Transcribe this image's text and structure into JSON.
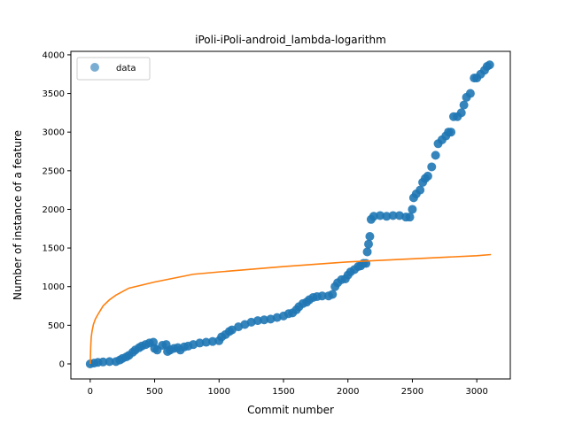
{
  "chart_data": {
    "type": "scatter",
    "title": "iPoli-iPoli-android_lambda-logarithm",
    "xlabel": "Commit number",
    "ylabel": "Number of instance of a feature",
    "xlim": [
      -150,
      3260
    ],
    "ylim": [
      -195,
      4045
    ],
    "xticks": [
      0,
      500,
      1000,
      1500,
      2000,
      2500,
      3000
    ],
    "yticks": [
      0,
      500,
      1000,
      1500,
      2000,
      2500,
      3000,
      3500,
      4000
    ],
    "grid": false,
    "legend": {
      "placement": "top-left",
      "entries": [
        "data"
      ]
    },
    "colors": {
      "data": "#1f77b4",
      "fit": "#ff7f0e"
    },
    "series": [
      {
        "name": "data",
        "kind": "scatter",
        "x": [
          0,
          30,
          60,
          100,
          150,
          200,
          230,
          250,
          280,
          300,
          330,
          350,
          380,
          400,
          430,
          460,
          490,
          500,
          520,
          560,
          590,
          600,
          620,
          650,
          680,
          700,
          730,
          760,
          800,
          850,
          900,
          950,
          1000,
          1020,
          1050,
          1080,
          1100,
          1150,
          1200,
          1250,
          1300,
          1350,
          1400,
          1450,
          1500,
          1540,
          1570,
          1600,
          1620,
          1650,
          1680,
          1700,
          1730,
          1760,
          1800,
          1850,
          1880,
          1900,
          1920,
          1950,
          1980,
          2000,
          2020,
          2050,
          2080,
          2100,
          2120,
          2140,
          2150,
          2160,
          2170,
          2180,
          2200,
          2250,
          2300,
          2350,
          2400,
          2450,
          2480,
          2500,
          2510,
          2530,
          2560,
          2580,
          2600,
          2620,
          2650,
          2680,
          2700,
          2730,
          2760,
          2780,
          2800,
          2820,
          2850,
          2880,
          2900,
          2920,
          2950,
          2980,
          3000,
          3030,
          3060,
          3080,
          3100
        ],
        "y": [
          0,
          10,
          20,
          25,
          30,
          30,
          50,
          70,
          90,
          110,
          150,
          180,
          210,
          230,
          250,
          270,
          280,
          200,
          180,
          240,
          250,
          160,
          180,
          200,
          210,
          180,
          220,
          230,
          250,
          270,
          280,
          290,
          300,
          350,
          380,
          420,
          440,
          480,
          510,
          540,
          560,
          570,
          580,
          600,
          620,
          650,
          660,
          700,
          740,
          780,
          800,
          830,
          860,
          870,
          880,
          880,
          900,
          1000,
          1050,
          1090,
          1100,
          1150,
          1190,
          1220,
          1260,
          1270,
          1300,
          1300,
          1450,
          1550,
          1650,
          1870,
          1910,
          1920,
          1910,
          1920,
          1920,
          1900,
          1900,
          2000,
          2150,
          2200,
          2250,
          2350,
          2400,
          2430,
          2550,
          2700,
          2850,
          2900,
          2950,
          3000,
          3000,
          3200,
          3200,
          3250,
          3350,
          3450,
          3500,
          3700,
          3700,
          3750,
          3800,
          3850,
          3870
        ]
      },
      {
        "name": "",
        "kind": "line",
        "fit": "logarithmic",
        "x": [
          1,
          2,
          4,
          8,
          15,
          25,
          40,
          60,
          100,
          150,
          200,
          300,
          500,
          800,
          1000,
          1500,
          2000,
          2500,
          3000,
          3110
        ],
        "y": [
          0,
          100,
          220,
          345,
          430,
          510,
          580,
          640,
          750,
          830,
          890,
          980,
          1060,
          1160,
          1190,
          1260,
          1320,
          1360,
          1400,
          1415
        ]
      }
    ]
  }
}
